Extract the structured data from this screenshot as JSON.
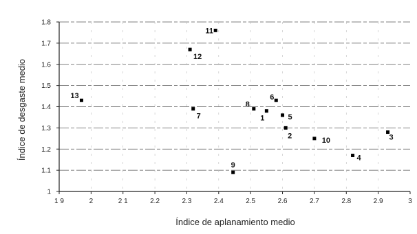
{
  "chart_data": {
    "type": "scatter",
    "xlabel": "Índice de aplanamiento medio",
    "ylabel": "Índice de desgaste medio",
    "xlim": [
      1.9,
      3.0
    ],
    "ylim": [
      1.0,
      1.8
    ],
    "x_ticks": [
      "1 9",
      "2",
      "2 1",
      "2.2",
      "2.3",
      "2.4",
      "2.5",
      "2.6",
      "2.7",
      "2.8",
      "2.9",
      "3"
    ],
    "y_ticks": [
      "1",
      "1.1",
      "1.2",
      "1.3",
      "1.4",
      "1.5",
      "1.6",
      "1.7",
      "1.8"
    ],
    "grid": true,
    "marker_color": "#000000",
    "points": [
      {
        "label": "1",
        "x": 2.55,
        "y": 1.38
      },
      {
        "label": "2",
        "x": 2.61,
        "y": 1.3
      },
      {
        "label": "3",
        "x": 2.93,
        "y": 1.28
      },
      {
        "label": "4",
        "x": 2.82,
        "y": 1.17
      },
      {
        "label": "5",
        "x": 2.6,
        "y": 1.36
      },
      {
        "label": "6",
        "x": 2.58,
        "y": 1.43
      },
      {
        "label": "7",
        "x": 2.32,
        "y": 1.39
      },
      {
        "label": "8",
        "x": 2.51,
        "y": 1.39
      },
      {
        "label": "9",
        "x": 2.445,
        "y": 1.09
      },
      {
        "label": "10",
        "x": 2.7,
        "y": 1.25
      },
      {
        "label": "11",
        "x": 2.39,
        "y": 1.76
      },
      {
        "label": "12",
        "x": 2.31,
        "y": 1.67
      },
      {
        "label": "13",
        "x": 1.97,
        "y": 1.43
      }
    ]
  }
}
